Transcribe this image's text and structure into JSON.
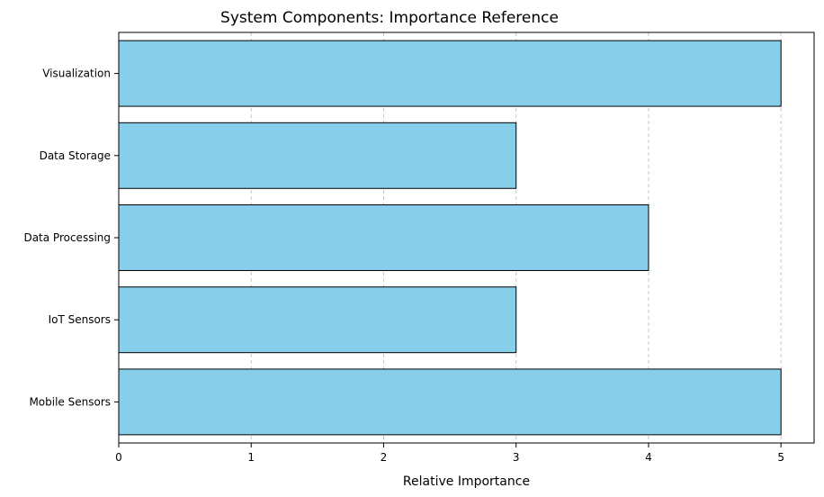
{
  "chart_data": {
    "type": "bar",
    "orientation": "horizontal",
    "title": "System Components: Importance Reference",
    "xlabel": "Relative Importance",
    "ylabel": "",
    "categories": [
      "Mobile Sensors",
      "IoT Sensors",
      "Data Processing",
      "Data Storage",
      "Visualization"
    ],
    "values": [
      5,
      3,
      4,
      3,
      5
    ],
    "xlim": [
      0,
      5.25
    ],
    "xticks": [
      "0",
      "1",
      "2",
      "3",
      "4",
      "5"
    ],
    "grid": "x-dashed",
    "bar_color": "#87ceeb",
    "bar_edge_color": "#000000",
    "grid_color": "#c8c8c8"
  }
}
